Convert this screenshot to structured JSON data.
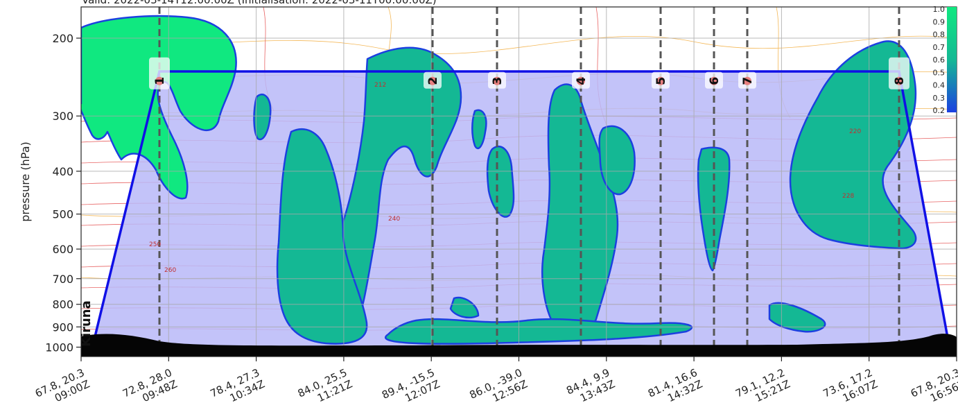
{
  "header_text": "Valid: 2022-03-14T12:00:00Z (Initialisation: 2022-03-11T00:00:00Z)",
  "chart_data": {
    "type": "heatmap",
    "ylabel": "pressure (hPa)",
    "y_scale": "log",
    "ylim": [
      1050,
      170
    ],
    "y_ticks": [
      {
        "value": 200,
        "label": "200"
      },
      {
        "value": 300,
        "label": "300"
      },
      {
        "value": 400,
        "label": "400"
      },
      {
        "value": 500,
        "label": "500"
      },
      {
        "value": 600,
        "label": "600"
      },
      {
        "value": 700,
        "label": "700"
      },
      {
        "value": 800,
        "label": "800"
      },
      {
        "value": 900,
        "label": "900"
      },
      {
        "value": 1000,
        "label": "1000"
      }
    ],
    "x_ticks": [
      {
        "coord": "67.8, 20.3",
        "time": "09:00Z"
      },
      {
        "coord": "72.8, 28.0",
        "time": "09:48Z"
      },
      {
        "coord": "78.4, 27.3",
        "time": "10:34Z"
      },
      {
        "coord": "84.0, 25.5",
        "time": "11:21Z"
      },
      {
        "coord": "89.4, -15.5",
        "time": "12:07Z"
      },
      {
        "coord": "86.0, -39.0",
        "time": "12:56Z"
      },
      {
        "coord": "84.4, 9.9",
        "time": "13:43Z"
      },
      {
        "coord": "81.4, 16.6",
        "time": "14:32Z"
      },
      {
        "coord": "79.1, 12.2",
        "time": "15:21Z"
      },
      {
        "coord": "73.6, 17.2",
        "time": "16:07Z"
      },
      {
        "coord": "67.8, 20.3",
        "time": "16:56Z"
      }
    ],
    "waypoints": [
      "1",
      "2",
      "3",
      "4",
      "5",
      "6",
      "7",
      "8"
    ],
    "flight_level_hpa": 250,
    "departure_label": "Kiruna",
    "colorbar_ticks": [
      "1.0",
      "0.9",
      "0.8",
      "0.7",
      "0.6",
      "0.5",
      "0.4",
      "0.3",
      "0.2"
    ],
    "contour_labels": [
      "212",
      "240",
      "250",
      "260",
      "220",
      "228"
    ],
    "grid": true,
    "colors": {
      "flight_area": "#b8b8f8",
      "flight_path": "#1010e6",
      "cloud_high": "#10e880",
      "cloud_mid": "#14b894",
      "cloud_edge": "#1c40e0",
      "contour_red": "#e03030",
      "contour_orange": "#f0a020",
      "ground": "#050505"
    }
  }
}
